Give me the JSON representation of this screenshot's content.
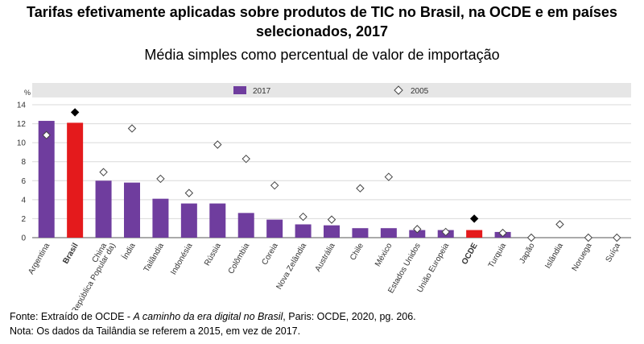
{
  "header": {
    "title": "Tarifas efetivamente aplicadas sobre produtos de TIC no Brasil, na OCDE e em países selecionados, 2017",
    "subtitle": "Média simples como percentual de valor de importação"
  },
  "chart_data": {
    "type": "bar",
    "ylabel": "%",
    "ylim": [
      0,
      14
    ],
    "yticks": [
      0,
      2,
      4,
      6,
      8,
      10,
      12,
      14
    ],
    "grid": true,
    "legend_position": "top",
    "categories": [
      "Argentina",
      "Brasil",
      "China (República Popular da)",
      "Índia",
      "Tailândia",
      "Indonésia",
      "Rússia",
      "Colômbia",
      "Coreia",
      "Nova Zelândia",
      "Austrália",
      "Chile",
      "México",
      "Estados Unidos",
      "União Europeia",
      "OCDE",
      "Turquia",
      "Japão",
      "Islândia",
      "Noruega",
      "Suíça"
    ],
    "highlighted_categories": [
      "Brasil",
      "OCDE"
    ],
    "series": [
      {
        "name": "2017",
        "kind": "bar",
        "values": [
          12.3,
          12.1,
          6.0,
          5.8,
          4.1,
          3.6,
          3.6,
          2.6,
          1.9,
          1.4,
          1.3,
          1.0,
          1.0,
          0.8,
          0.8,
          0.8,
          0.6,
          0,
          0,
          0,
          0
        ]
      },
      {
        "name": "2005",
        "kind": "marker",
        "values": [
          10.8,
          13.2,
          6.9,
          11.5,
          6.2,
          4.7,
          9.8,
          8.3,
          5.5,
          2.2,
          1.9,
          5.2,
          6.4,
          0.9,
          0.6,
          2.0,
          0.5,
          0.0,
          1.4,
          0.0,
          0.0
        ]
      }
    ],
    "colors": {
      "bar": "#6f3d9e",
      "bar_highlight": "#e41a1c",
      "marker_highlight": "#000000"
    }
  },
  "footer": {
    "source_prefix": "Fonte: Extraído de OCDE - ",
    "source_italic": "A caminho da era digital no Brasil",
    "source_suffix": ", Paris: OCDE, 2020, pg. 206.",
    "note": "Nota: Os dados da Tailândia se referem a 2015, em vez de 2017."
  }
}
